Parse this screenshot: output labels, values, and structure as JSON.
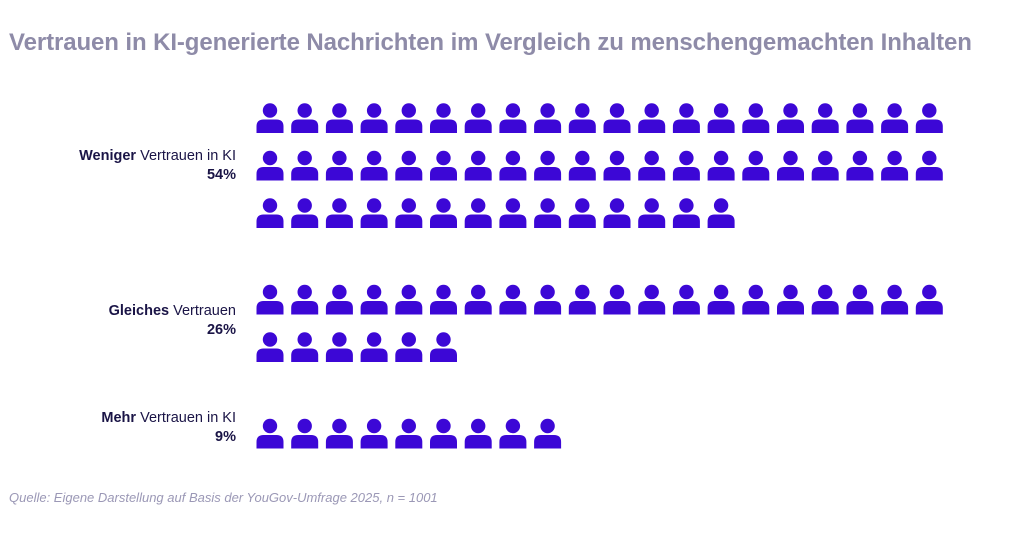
{
  "title": "Vertrauen in KI-generierte Nachrichten im Vergleich zu menschengemachten Inhalten",
  "source": "Quelle: Eigene Darstellung auf Basis der YouGov-Umfrage 2025, n = 1001",
  "colors": {
    "icon": "#3c07d6",
    "title": "#8e8ba8",
    "label": "#1a1446",
    "source": "#9b98b6"
  },
  "icon_name": "person-icon",
  "chart_data": {
    "type": "pictogram",
    "title": "Vertrauen in KI-generierte Nachrichten im Vergleich zu menschengemachten Inhalten",
    "unit": "%",
    "icons_per_row": 20,
    "categories": [
      {
        "label_bold": "Weniger",
        "label_rest": " Vertrauen in KI",
        "value": 54,
        "pct_label": "54%"
      },
      {
        "label_bold": "Gleiches",
        "label_rest": " Vertrauen",
        "value": 26,
        "pct_label": "26%"
      },
      {
        "label_bold": "Mehr",
        "label_rest": " Vertrauen in KI",
        "value": 9,
        "pct_label": "9%"
      }
    ]
  }
}
